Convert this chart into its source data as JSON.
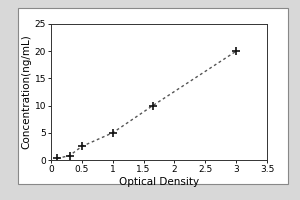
{
  "title": "",
  "xlabel": "Optical Density",
  "ylabel": "Concentration(ng/mL)",
  "xlim": [
    0,
    3.5
  ],
  "ylim": [
    0,
    25
  ],
  "xticks": [
    0,
    0.5,
    1.0,
    1.5,
    2.0,
    2.5,
    3.0,
    3.5
  ],
  "yticks": [
    0,
    5,
    10,
    15,
    20,
    25
  ],
  "data_x": [
    0.1,
    0.3,
    0.5,
    1.0,
    1.65,
    3.0
  ],
  "data_y": [
    0.3,
    0.8,
    2.5,
    5.0,
    10.0,
    20.0
  ],
  "marker": "+",
  "marker_color": "#111111",
  "line_color": "#555555",
  "marker_size": 6,
  "background_color": "#ffffff",
  "axis_label_fontsize": 7.5,
  "tick_fontsize": 6.5,
  "figure_facecolor": "#d8d8d8"
}
